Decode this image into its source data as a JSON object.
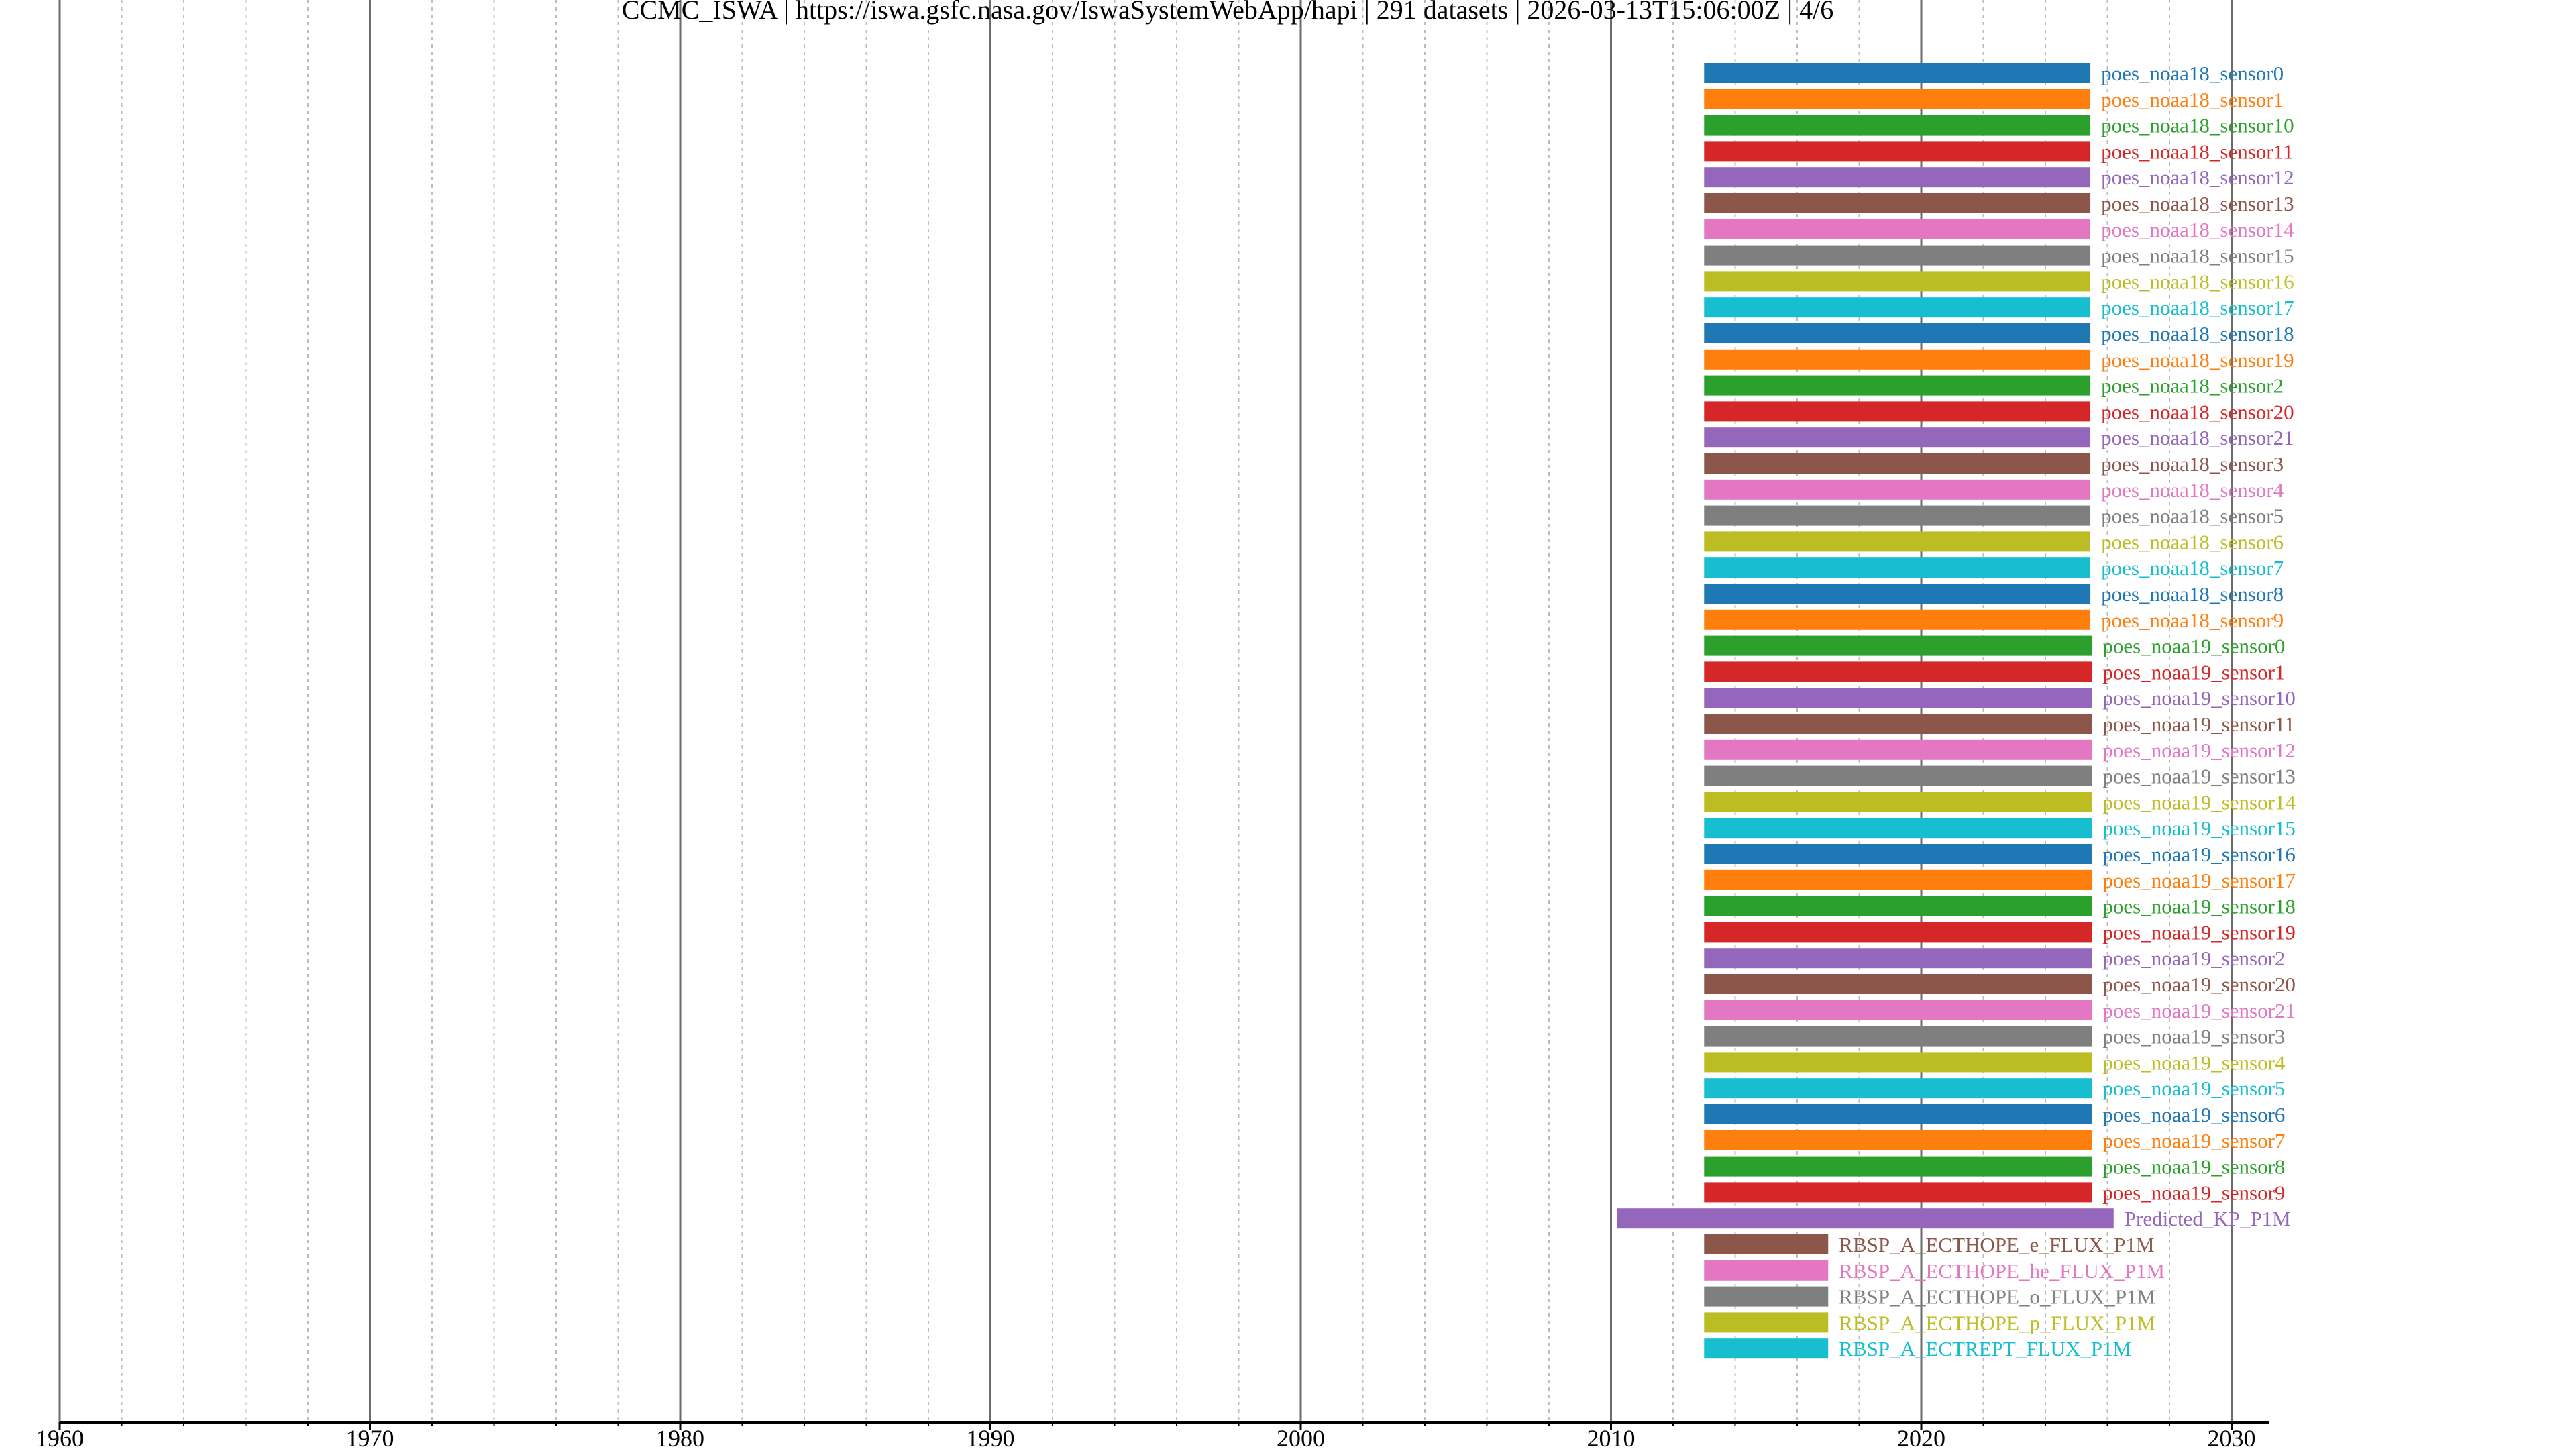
{
  "chart_data": {
    "type": "bar",
    "orientation": "horizontal",
    "title": "CCMC_ISWA | https://iswa.gsfc.nasa.gov/IswaSystemWebApp/hapi | 291 datasets | 2026-03-13T15:06:00Z | 4/6",
    "xlabel": "",
    "ylabel": "",
    "xlim": [
      1960,
      2031.2
    ],
    "x_ticks": [
      1960,
      1970,
      1980,
      1990,
      2000,
      2010,
      2020,
      2030
    ],
    "grid": {
      "major_x": true,
      "minor_x": true,
      "y": false
    },
    "palette": [
      "#1f77b4",
      "#ff7f0e",
      "#2ca02c",
      "#d62728",
      "#9467bd",
      "#8c564b",
      "#e377c2",
      "#7f7f7f",
      "#bcbd22",
      "#17becf"
    ],
    "series": [
      {
        "name": "poes_noaa18_sensor0",
        "start": 2013.0,
        "end": 2025.45
      },
      {
        "name": "poes_noaa18_sensor1",
        "start": 2013.0,
        "end": 2025.45
      },
      {
        "name": "poes_noaa18_sensor10",
        "start": 2013.0,
        "end": 2025.45
      },
      {
        "name": "poes_noaa18_sensor11",
        "start": 2013.0,
        "end": 2025.45
      },
      {
        "name": "poes_noaa18_sensor12",
        "start": 2013.0,
        "end": 2025.45
      },
      {
        "name": "poes_noaa18_sensor13",
        "start": 2013.0,
        "end": 2025.45
      },
      {
        "name": "poes_noaa18_sensor14",
        "start": 2013.0,
        "end": 2025.45
      },
      {
        "name": "poes_noaa18_sensor15",
        "start": 2013.0,
        "end": 2025.45
      },
      {
        "name": "poes_noaa18_sensor16",
        "start": 2013.0,
        "end": 2025.45
      },
      {
        "name": "poes_noaa18_sensor17",
        "start": 2013.0,
        "end": 2025.45
      },
      {
        "name": "poes_noaa18_sensor18",
        "start": 2013.0,
        "end": 2025.45
      },
      {
        "name": "poes_noaa18_sensor19",
        "start": 2013.0,
        "end": 2025.45
      },
      {
        "name": "poes_noaa18_sensor2",
        "start": 2013.0,
        "end": 2025.45
      },
      {
        "name": "poes_noaa18_sensor20",
        "start": 2013.0,
        "end": 2025.45
      },
      {
        "name": "poes_noaa18_sensor21",
        "start": 2013.0,
        "end": 2025.45
      },
      {
        "name": "poes_noaa18_sensor3",
        "start": 2013.0,
        "end": 2025.45
      },
      {
        "name": "poes_noaa18_sensor4",
        "start": 2013.0,
        "end": 2025.45
      },
      {
        "name": "poes_noaa18_sensor5",
        "start": 2013.0,
        "end": 2025.45
      },
      {
        "name": "poes_noaa18_sensor6",
        "start": 2013.0,
        "end": 2025.45
      },
      {
        "name": "poes_noaa18_sensor7",
        "start": 2013.0,
        "end": 2025.45
      },
      {
        "name": "poes_noaa18_sensor8",
        "start": 2013.0,
        "end": 2025.45
      },
      {
        "name": "poes_noaa18_sensor9",
        "start": 2013.0,
        "end": 2025.45
      },
      {
        "name": "poes_noaa19_sensor0",
        "start": 2013.0,
        "end": 2025.5
      },
      {
        "name": "poes_noaa19_sensor1",
        "start": 2013.0,
        "end": 2025.5
      },
      {
        "name": "poes_noaa19_sensor10",
        "start": 2013.0,
        "end": 2025.5
      },
      {
        "name": "poes_noaa19_sensor11",
        "start": 2013.0,
        "end": 2025.5
      },
      {
        "name": "poes_noaa19_sensor12",
        "start": 2013.0,
        "end": 2025.5
      },
      {
        "name": "poes_noaa19_sensor13",
        "start": 2013.0,
        "end": 2025.5
      },
      {
        "name": "poes_noaa19_sensor14",
        "start": 2013.0,
        "end": 2025.5
      },
      {
        "name": "poes_noaa19_sensor15",
        "start": 2013.0,
        "end": 2025.5
      },
      {
        "name": "poes_noaa19_sensor16",
        "start": 2013.0,
        "end": 2025.5
      },
      {
        "name": "poes_noaa19_sensor17",
        "start": 2013.0,
        "end": 2025.5
      },
      {
        "name": "poes_noaa19_sensor18",
        "start": 2013.0,
        "end": 2025.5
      },
      {
        "name": "poes_noaa19_sensor19",
        "start": 2013.0,
        "end": 2025.5
      },
      {
        "name": "poes_noaa19_sensor2",
        "start": 2013.0,
        "end": 2025.5
      },
      {
        "name": "poes_noaa19_sensor20",
        "start": 2013.0,
        "end": 2025.5
      },
      {
        "name": "poes_noaa19_sensor21",
        "start": 2013.0,
        "end": 2025.5
      },
      {
        "name": "poes_noaa19_sensor3",
        "start": 2013.0,
        "end": 2025.5
      },
      {
        "name": "poes_noaa19_sensor4",
        "start": 2013.0,
        "end": 2025.5
      },
      {
        "name": "poes_noaa19_sensor5",
        "start": 2013.0,
        "end": 2025.5
      },
      {
        "name": "poes_noaa19_sensor6",
        "start": 2013.0,
        "end": 2025.5
      },
      {
        "name": "poes_noaa19_sensor7",
        "start": 2013.0,
        "end": 2025.5
      },
      {
        "name": "poes_noaa19_sensor8",
        "start": 2013.0,
        "end": 2025.5
      },
      {
        "name": "poes_noaa19_sensor9",
        "start": 2013.0,
        "end": 2025.5
      },
      {
        "name": "Predicted_KP_P1M",
        "start": 2010.2,
        "end": 2026.2
      },
      {
        "name": "RBSP_A_ECTHOPE_e_FLUX_P1M",
        "start": 2013.0,
        "end": 2017.0
      },
      {
        "name": "RBSP_A_ECTHOPE_he_FLUX_P1M",
        "start": 2013.0,
        "end": 2017.0
      },
      {
        "name": "RBSP_A_ECTHOPE_o_FLUX_P1M",
        "start": 2013.0,
        "end": 2017.0
      },
      {
        "name": "RBSP_A_ECTHOPE_p_FLUX_P1M",
        "start": 2013.0,
        "end": 2017.0
      },
      {
        "name": "RBSP_A_ECTREPT_FLUX_P1M",
        "start": 2013.0,
        "end": 2017.0
      }
    ]
  }
}
